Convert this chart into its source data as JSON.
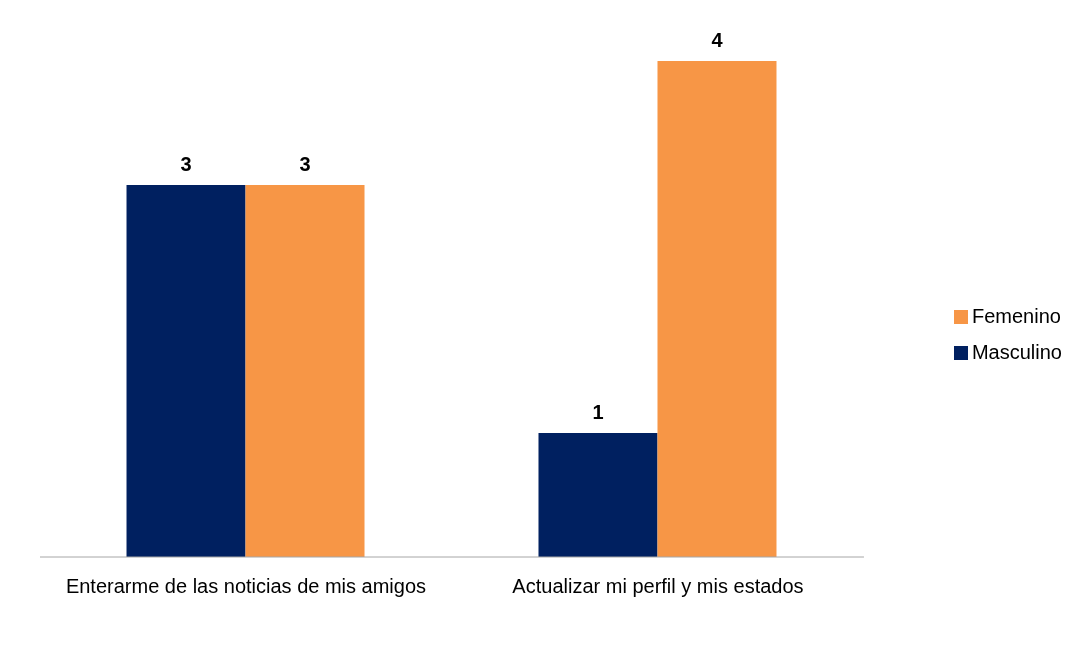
{
  "chart_data": {
    "type": "bar",
    "categories": [
      "Enterarme de las noticias de mis amigos",
      "Actualizar mi perfil y mis estados"
    ],
    "series": [
      {
        "name": "Masculino",
        "color": "#002060",
        "values": [
          3,
          1
        ]
      },
      {
        "name": "Femenino",
        "color": "#f79646",
        "values": [
          3,
          4
        ]
      }
    ],
    "data_labels": true,
    "legend": "right"
  }
}
